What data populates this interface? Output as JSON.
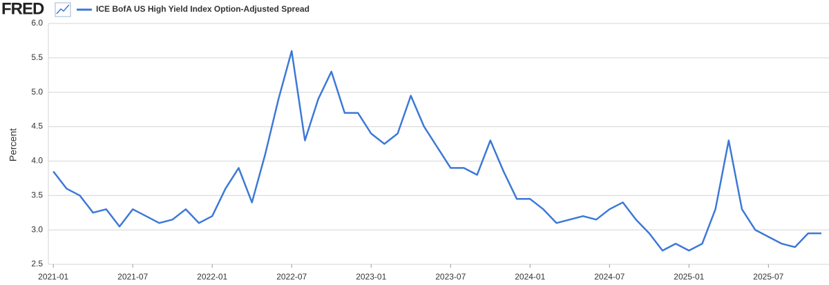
{
  "brand": "FRED",
  "chart_data": {
    "type": "line",
    "legend": "ICE BofA US High Yield Index Option-Adjusted Spread",
    "y_label": "Percent",
    "x": [
      "2021-01",
      "2021-02",
      "2021-03",
      "2021-04",
      "2021-05",
      "2021-06",
      "2021-07",
      "2021-08",
      "2021-09",
      "2021-10",
      "2021-11",
      "2021-12",
      "2022-01",
      "2022-02",
      "2022-03",
      "2022-04",
      "2022-05",
      "2022-06",
      "2022-07",
      "2022-08",
      "2022-09",
      "2022-10",
      "2022-11",
      "2022-12",
      "2023-01",
      "2023-02",
      "2023-03",
      "2023-04",
      "2023-05",
      "2023-06",
      "2023-07",
      "2023-08",
      "2023-09",
      "2023-10",
      "2023-11",
      "2023-12",
      "2024-01",
      "2024-02",
      "2024-03",
      "2024-04",
      "2024-05",
      "2024-06",
      "2024-07",
      "2024-08",
      "2024-09",
      "2024-10",
      "2024-11",
      "2024-12",
      "2025-01",
      "2025-02",
      "2025-03",
      "2025-04",
      "2025-05",
      "2025-06",
      "2025-07",
      "2025-08",
      "2025-09",
      "2025-10",
      "2025-11"
    ],
    "series": [
      {
        "name": "ICE BofA US High Yield Index Option-Adjusted Spread",
        "color": "#3c78d8",
        "values": [
          3.85,
          3.6,
          3.5,
          3.25,
          3.3,
          3.05,
          3.3,
          3.2,
          3.1,
          3.15,
          3.3,
          3.1,
          3.2,
          3.6,
          3.9,
          3.4,
          4.1,
          4.9,
          5.6,
          4.3,
          4.9,
          5.3,
          4.7,
          4.7,
          4.4,
          4.25,
          4.4,
          4.95,
          4.5,
          4.2,
          3.9,
          3.9,
          3.8,
          4.3,
          3.85,
          3.45,
          3.45,
          3.3,
          3.1,
          3.15,
          3.2,
          3.15,
          3.3,
          3.4,
          3.15,
          2.95,
          2.7,
          2.8,
          2.7,
          2.8,
          3.3,
          4.3,
          3.3,
          3.0,
          2.9,
          2.8,
          2.75,
          2.95,
          2.95
        ]
      }
    ],
    "xlim": [
      "2020-12",
      "2025-11"
    ],
    "xticks": [
      "2021-01",
      "2021-07",
      "2022-01",
      "2022-07",
      "2023-01",
      "2023-07",
      "2024-01",
      "2024-07",
      "2025-01",
      "2025-07"
    ],
    "ylim": [
      2.5,
      6
    ],
    "yticks": [
      2.5,
      {
        "value": 3,
        "label": "3.0"
      },
      3.5,
      {
        "value": 4,
        "label": "4.0"
      },
      4.5,
      {
        "value": 5,
        "label": "5.0"
      },
      5.5,
      {
        "value": 6,
        "label": "6.0"
      }
    ],
    "grid": true
  }
}
